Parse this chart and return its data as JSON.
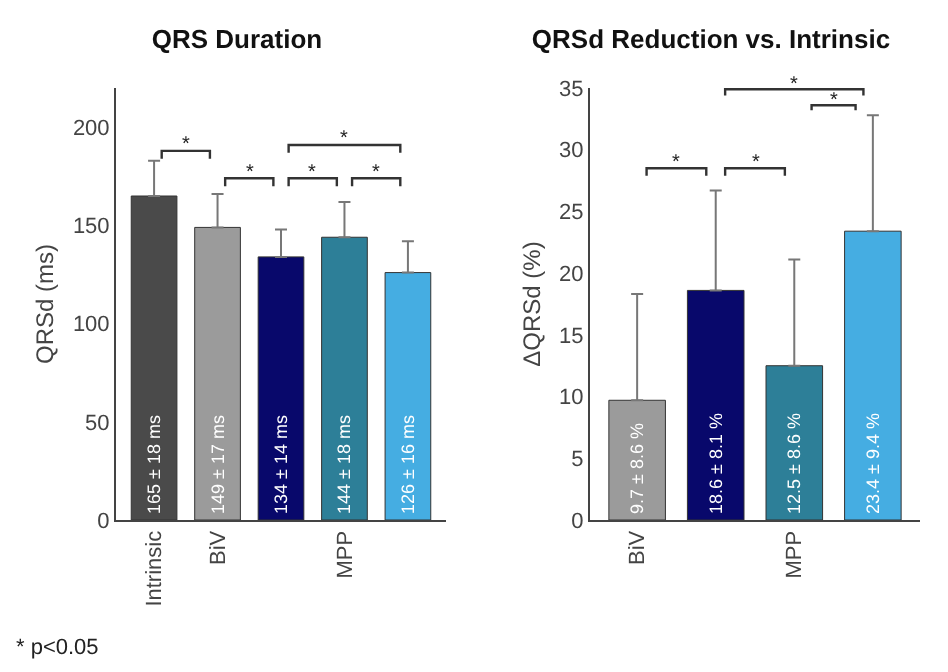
{
  "chart_data": [
    {
      "type": "bar",
      "title": "QRS Duration",
      "ylabel": "QRSd (ms)",
      "categories": [
        "Intrinsic",
        "BiV",
        null,
        "MPP",
        null
      ],
      "values": [
        165,
        149,
        134,
        144,
        126
      ],
      "colors": [
        "#4a4a4a",
        "#9b9b9b",
        "#08086b",
        "#2d7f98",
        "#45ade2"
      ],
      "errors": [
        [
          165,
          183
        ],
        [
          149,
          166
        ],
        [
          134,
          148
        ],
        [
          144,
          162
        ],
        [
          126,
          142
        ]
      ],
      "value_labels": [
        "165 ± 18 ms",
        "149 ± 17 ms",
        "134 ± 14 ms",
        "144 ± 18 ms",
        "126 ± 16 ms"
      ],
      "ylim": [
        0,
        220
      ],
      "yticks": [
        0,
        50,
        100,
        150,
        200
      ],
      "grid": false,
      "annotations": [
        "*",
        "*",
        "*",
        "*",
        "*",
        "* p<0.05"
      ]
    },
    {
      "type": "bar",
      "title": "QRSd Reduction vs. Intrinsic",
      "ylabel": "ΔQRSd (%)",
      "categories": [
        "BiV",
        null,
        "MPP",
        null
      ],
      "values": [
        9.7,
        18.6,
        12.5,
        23.4
      ],
      "colors": [
        "#9b9b9b",
        "#08086b",
        "#2d7f98",
        "#45ade2"
      ],
      "errors": [
        [
          9.7,
          18.3
        ],
        [
          18.6,
          26.7
        ],
        [
          12.5,
          21.1
        ],
        [
          23.4,
          32.8
        ]
      ],
      "value_labels": [
        "9.7 ± 8.6 %",
        "18.6 ± 8.1 %",
        "12.5 ± 8.6 %",
        "23.4 ± 9.4 %"
      ],
      "ylim": [
        0,
        35
      ],
      "yticks": [
        0,
        5,
        10,
        15,
        20,
        25,
        30,
        35
      ],
      "grid": false,
      "annotations": [
        "*",
        "*",
        "*",
        "*"
      ]
    }
  ]
}
